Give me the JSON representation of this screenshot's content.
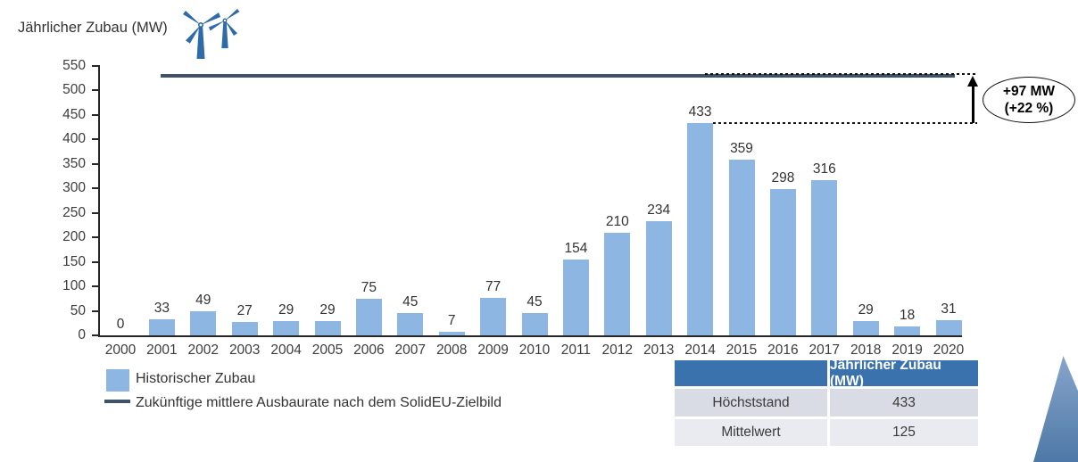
{
  "title": "Jährlicher Zubau (MW)",
  "chart_data": {
    "type": "bar",
    "title": "Jährlicher Zubau (MW)",
    "categories": [
      "2000",
      "2001",
      "2002",
      "2003",
      "2004",
      "2005",
      "2006",
      "2007",
      "2008",
      "2009",
      "2010",
      "2011",
      "2012",
      "2013",
      "2014",
      "2015",
      "2016",
      "2017",
      "2018",
      "2019",
      "2020"
    ],
    "series": [
      {
        "name": "Historischer Zubau",
        "values": [
          0,
          33,
          49,
          27,
          29,
          29,
          75,
          45,
          7,
          77,
          45,
          154,
          210,
          234,
          433,
          359,
          298,
          316,
          29,
          18,
          31
        ]
      }
    ],
    "target_line": {
      "label": "Zukünftige mittlere Ausbaurate nach dem SolidEU-Zielbild",
      "value": 530
    },
    "ylim": [
      0,
      550
    ],
    "ytick_step": 50,
    "grid": false,
    "legend_position": "bottom-left"
  },
  "annotation": {
    "line1": "+97 MW",
    "line2": "(+22 %)"
  },
  "legend": {
    "bar_label": "Historischer Zubau",
    "line_label": "Zukünftige mittlere Ausbaurate nach dem SolidEU-Zielbild"
  },
  "table": {
    "header": "Jährlicher Zubau (MW)",
    "rows": [
      {
        "label": "Höchststand",
        "value": "433"
      },
      {
        "label": "Mittelwert",
        "value": "125"
      }
    ]
  },
  "icons": {
    "decoration": "wind-turbine-icon"
  },
  "colors": {
    "bar": "#8db6e2",
    "target_line": "#3f5368",
    "axis": "#262626",
    "table_header": "#3a72ae",
    "table_row_odd": "#d9dce4",
    "table_row_even": "#e9ebf1",
    "turbine": "#2e6ba8",
    "triangle_top": "#87a5cb",
    "triangle_bottom": "#4e78a7"
  }
}
